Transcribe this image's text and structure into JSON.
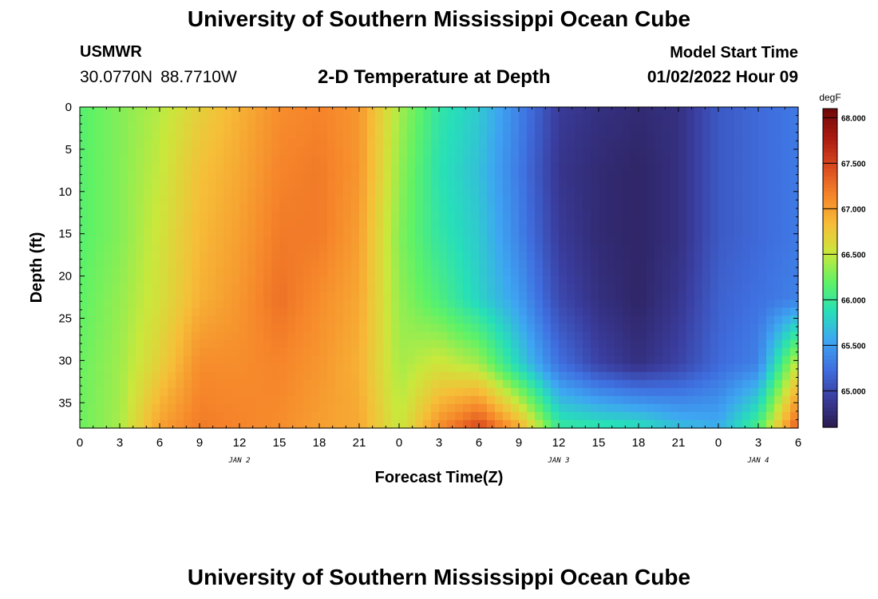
{
  "header": {
    "title": "University of Southern Mississippi Ocean Cube",
    "station": "USMWR",
    "latitude": "30.0770N",
    "longitude": "88.7710W",
    "subtitle": "2-D Temperature at Depth",
    "model_start_label": "Model Start Time",
    "model_start_value": "01/02/2022 Hour 09"
  },
  "footer": {
    "title": "University of Southern Mississippi Ocean Cube"
  },
  "chart_data": {
    "type": "heatmap",
    "xlabel": "Forecast Time(Z)",
    "ylabel": "Depth (ft)",
    "x_tick_labels": [
      "0",
      "3",
      "6",
      "9",
      "12",
      "15",
      "18",
      "21",
      "0",
      "3",
      "6",
      "9",
      "12",
      "15",
      "18",
      "21",
      "0",
      "3",
      "6"
    ],
    "date_labels": [
      {
        "label": "JAN 2",
        "hour": 12
      },
      {
        "label": "JAN 3",
        "hour": 36
      },
      {
        "label": "JAN 4",
        "hour": 51
      }
    ],
    "x_hours_range": [
      0,
      54
    ],
    "y_ticks": [
      0,
      5,
      10,
      15,
      20,
      25,
      30,
      35
    ],
    "y_range": [
      0,
      38
    ],
    "y_inverted": true,
    "colorbar": {
      "unit": "degF",
      "tick_labels": [
        "68.000",
        "67.500",
        "67.000",
        "66.500",
        "66.000",
        "65.500",
        "65.000"
      ],
      "range": [
        64.6,
        68.1
      ],
      "colors": [
        "#2b1b4e",
        "#3a3d9e",
        "#3f6fe0",
        "#3ea6f2",
        "#27dfb9",
        "#5ff266",
        "#c9e83c",
        "#f6be38",
        "#f6852a",
        "#d9491e",
        "#aa1a10",
        "#6e0808"
      ]
    },
    "grid": false,
    "z_values_degF": [
      [
        66.15,
        66.15,
        66.15,
        66.18,
        66.22,
        66.23
      ],
      [
        66.3,
        66.3,
        66.3,
        66.35,
        66.38,
        66.4
      ],
      [
        66.45,
        66.5,
        66.55,
        66.58,
        66.7,
        67.0
      ],
      [
        66.7,
        66.8,
        66.85,
        66.9,
        67.1,
        67.2
      ],
      [
        66.9,
        66.95,
        67.0,
        67.05,
        67.1,
        67.15
      ],
      [
        67.1,
        67.15,
        67.2,
        67.25,
        67.15,
        67.1
      ],
      [
        67.15,
        67.2,
        67.2,
        67.1,
        67.05,
        67.0
      ],
      [
        67.05,
        67.05,
        67.0,
        66.95,
        66.9,
        66.95
      ],
      [
        66.4,
        66.35,
        66.3,
        66.35,
        66.4,
        66.5
      ],
      [
        65.95,
        65.9,
        65.95,
        66.1,
        66.55,
        67.1
      ],
      [
        65.75,
        65.7,
        65.75,
        65.8,
        66.4,
        67.5
      ],
      [
        65.35,
        65.3,
        65.35,
        65.5,
        65.8,
        66.95
      ],
      [
        64.9,
        64.85,
        64.9,
        65.0,
        65.25,
        66.0
      ],
      [
        64.8,
        64.75,
        64.75,
        64.8,
        64.95,
        65.95
      ],
      [
        64.75,
        64.7,
        64.7,
        64.7,
        64.8,
        65.9
      ],
      [
        64.8,
        64.8,
        64.8,
        64.85,
        64.95,
        65.7
      ],
      [
        65.1,
        65.1,
        65.1,
        65.15,
        65.2,
        65.6
      ],
      [
        65.2,
        65.2,
        65.2,
        65.25,
        65.35,
        66.1
      ],
      [
        65.3,
        65.3,
        65.3,
        65.35,
        66.55,
        67.4
      ]
    ]
  }
}
